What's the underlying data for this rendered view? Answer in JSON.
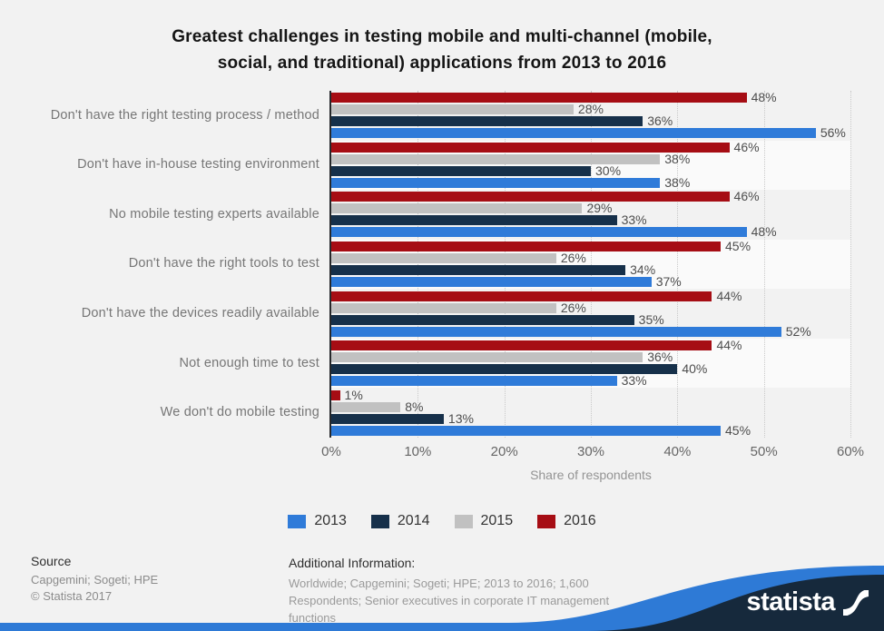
{
  "title": {
    "lines": [
      "Greatest challenges in testing mobile and multi-channel (mobile,",
      "social, and traditional) applications from 2013 to 2016"
    ]
  },
  "chart_data": {
    "type": "bar",
    "orientation": "horizontal",
    "title": "Greatest challenges in testing mobile and multi-channel (mobile, social, and traditional) applications from 2013 to 2016",
    "categories": [
      "Don't have the right testing process / method",
      "Don't have in-house testing environment",
      "No mobile testing experts available",
      "Don't have the right tools to test",
      "Don't have the devices readily available",
      "Not enough time to test",
      "We don't do mobile testing"
    ],
    "series": [
      {
        "name": "2013",
        "color": "#2f7bd9",
        "values": [
          56,
          38,
          48,
          37,
          52,
          33,
          45
        ]
      },
      {
        "name": "2014",
        "color": "#16304a",
        "values": [
          36,
          30,
          33,
          34,
          35,
          40,
          13
        ]
      },
      {
        "name": "2015",
        "color": "#c1c1c1",
        "values": [
          28,
          38,
          29,
          26,
          26,
          36,
          8
        ]
      },
      {
        "name": "2016",
        "color": "#a60d14",
        "values": [
          48,
          46,
          46,
          45,
          44,
          44,
          1
        ]
      }
    ],
    "bar_order_top_to_bottom": [
      "2016",
      "2015",
      "2014",
      "2013"
    ],
    "xlabel": "Share of respondents",
    "x_ticks": [
      "0%",
      "10%",
      "20%",
      "30%",
      "40%",
      "50%",
      "60%"
    ],
    "xlim": [
      0,
      60
    ],
    "value_suffix": "%",
    "grid": "vertical-dotted",
    "legend_position": "bottom",
    "band_color_alt": "#fafafa"
  },
  "footer": {
    "source_heading": "Source",
    "source_line": "Capgemini; Sogeti; HPE",
    "copyright": "©  Statista 2017",
    "additional_heading": "Additional Information:",
    "additional_text": "Worldwide; Capgemini; Sogeti; HPE; 2013 to 2016; 1,600 Respondents; Senior executives in corporate IT management functions"
  },
  "branding": {
    "logo_text": "statista",
    "logo_icon": "statista-wave-icon",
    "navy": "#16293c",
    "curve_blue": "#2e7ad6",
    "strip_blue": "#1b66cd"
  }
}
